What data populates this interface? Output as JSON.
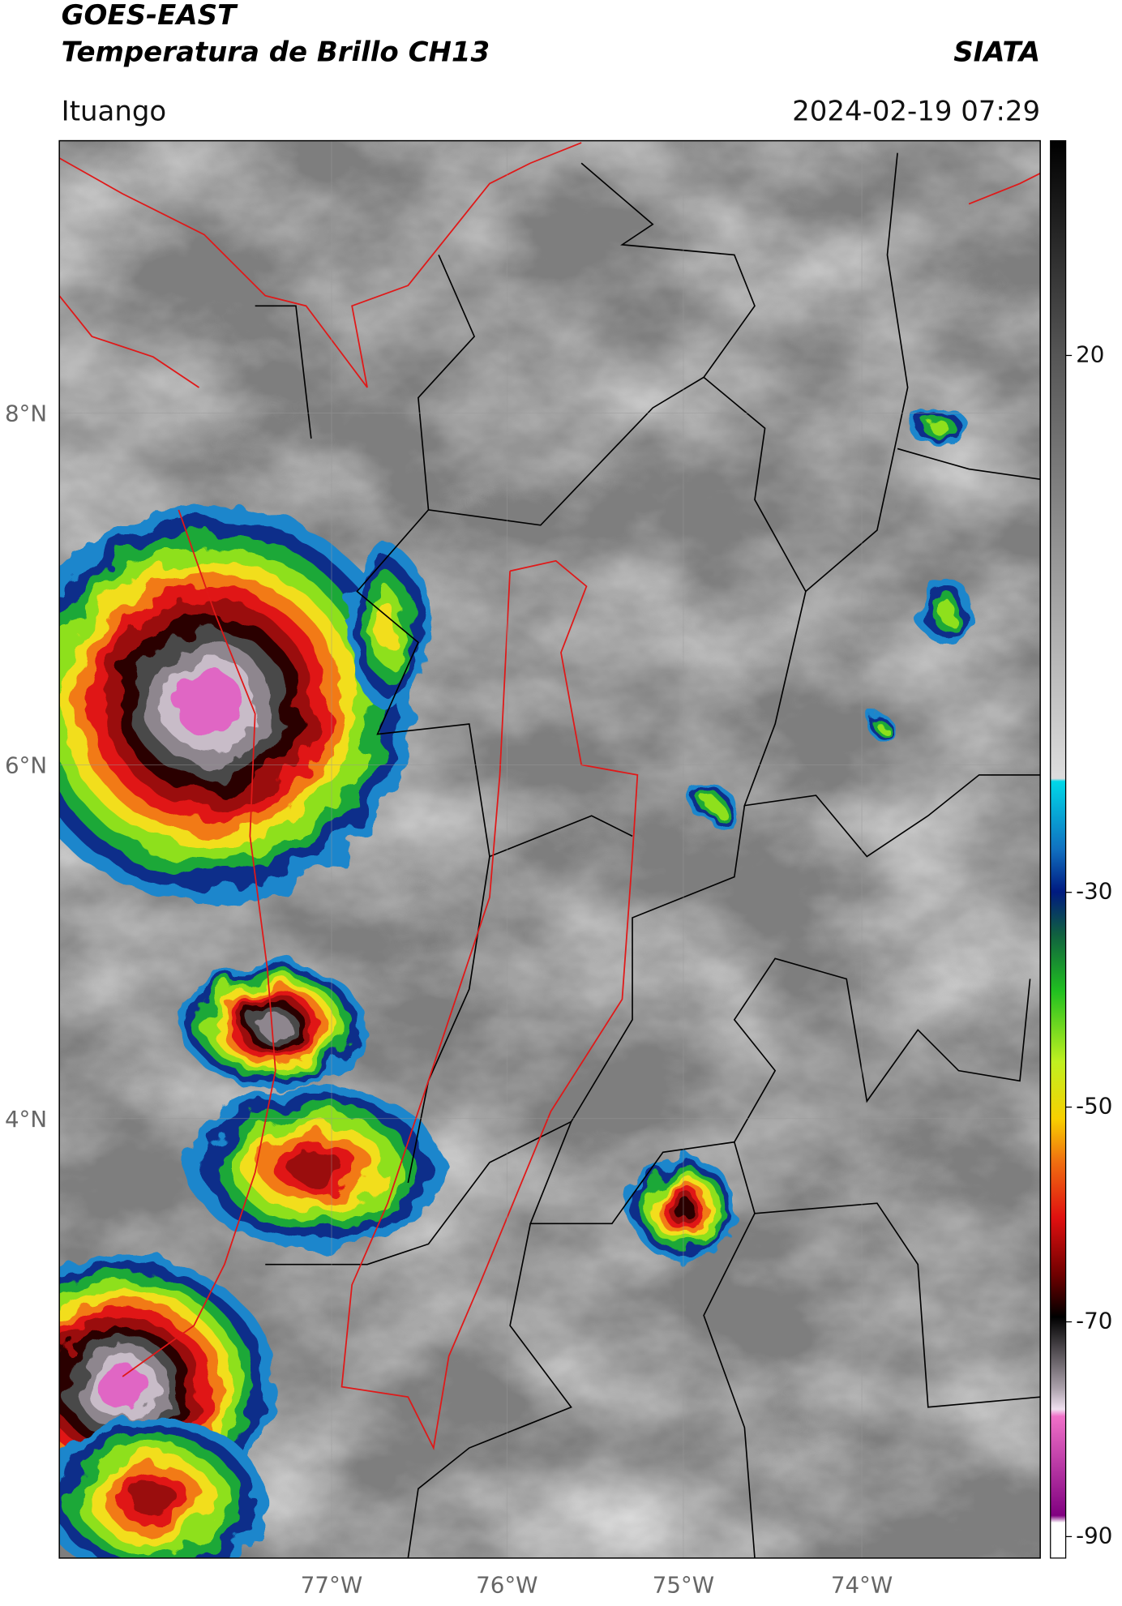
{
  "header": {
    "title": "GOES-EAST",
    "subtitle": "Temperatura de Brillo CH13",
    "source": "SIATA",
    "location": "Ituango",
    "datetime": "2024-02-19 07:29"
  },
  "map": {
    "lat_labels": [
      "8°N",
      "6°N",
      "4°N"
    ],
    "lon_labels": [
      "77°W",
      "76°W",
      "75°W",
      "74°W"
    ]
  },
  "colorbar": {
    "ticks": [
      20,
      -30,
      -50,
      -70,
      -90
    ],
    "limits": [
      40,
      -92
    ]
  }
}
